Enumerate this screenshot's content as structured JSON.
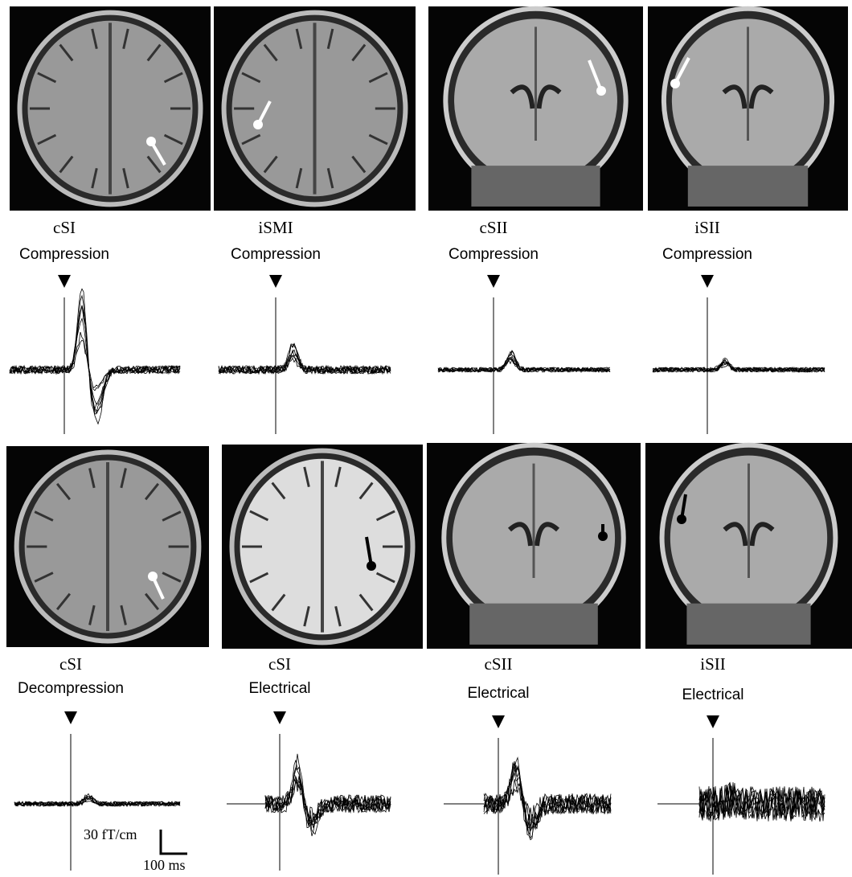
{
  "panels": [
    {
      "region": "cSI",
      "stimulus": "Compression"
    },
    {
      "region": "iSMI",
      "stimulus": "Compression"
    },
    {
      "region": "cSII",
      "stimulus": "Compression"
    },
    {
      "region": "iSII",
      "stimulus": "Compression"
    },
    {
      "region": "cSI",
      "stimulus": "Decompression"
    },
    {
      "region": "cSI",
      "stimulus": "Electrical"
    },
    {
      "region": "cSII",
      "stimulus": "Electrical"
    },
    {
      "region": "iSII",
      "stimulus": "Electrical"
    }
  ],
  "scale_bar": {
    "amplitude": "30 fT/cm",
    "time": "100 ms"
  }
}
